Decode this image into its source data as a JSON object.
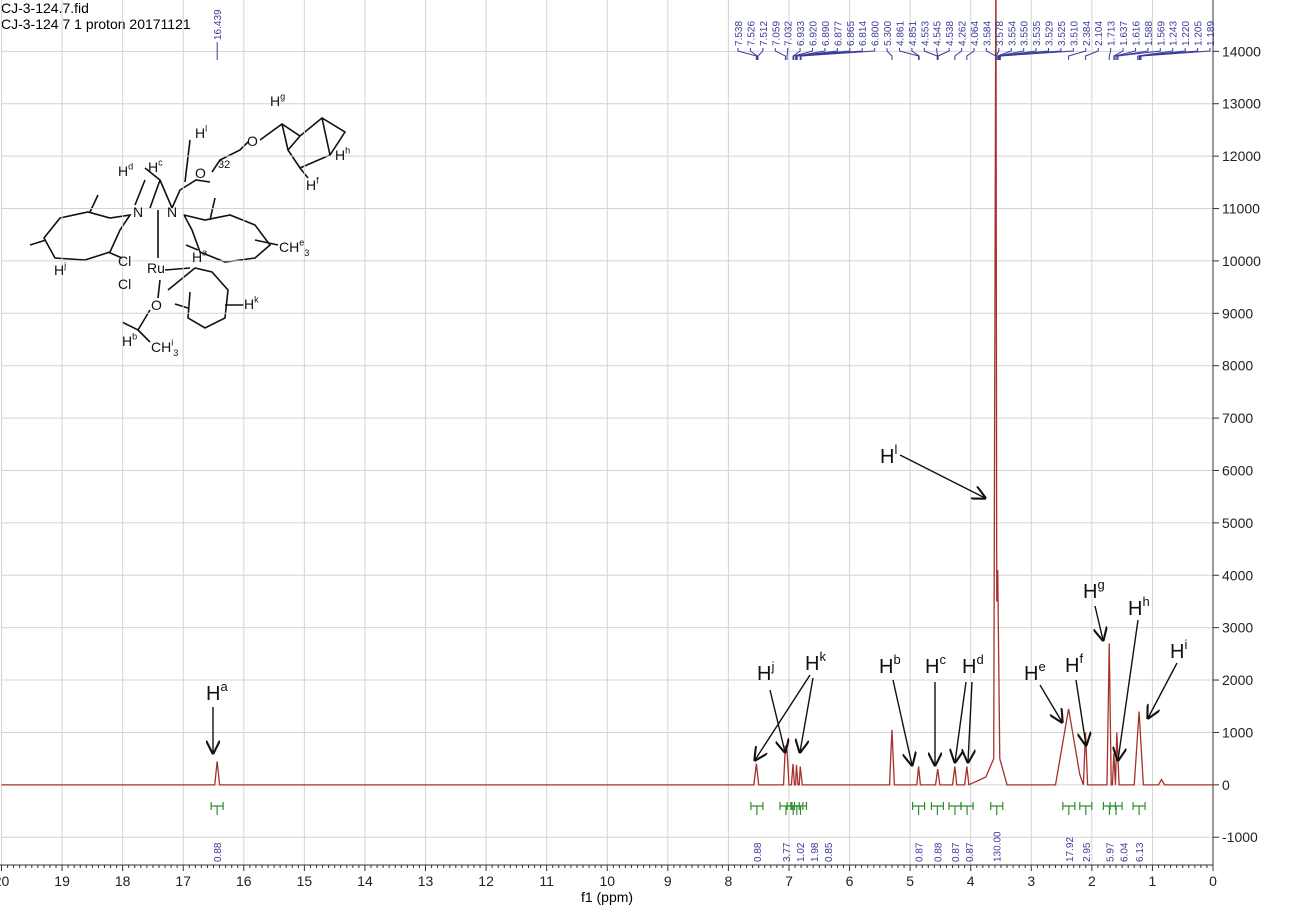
{
  "chart_data": {
    "type": "line",
    "title": "CJ-3-124.7.fid",
    "subtitle": "CJ-3-124 7 1 proton 20171121",
    "x_label": "f1 (ppm)",
    "xlim": [
      20,
      0
    ],
    "xticks": [
      20,
      19,
      18,
      17,
      16,
      15,
      14,
      13,
      12,
      11,
      10,
      9,
      8,
      7,
      6,
      5,
      4,
      3,
      2,
      1,
      0
    ],
    "ylim": [
      -1530,
      14980
    ],
    "yticks": [
      -1000,
      0,
      1000,
      2000,
      3000,
      4000,
      5000,
      6000,
      7000,
      8000,
      9000,
      10000,
      11000,
      12000,
      13000,
      14000
    ],
    "grid": true,
    "x": [
      20,
      16.48,
      16.44,
      16.4,
      7.58,
      7.538,
      7.5,
      7.09,
      7.059,
      7.032,
      7.0,
      6.96,
      6.933,
      6.91,
      6.89,
      6.877,
      6.85,
      6.83,
      6.814,
      6.78,
      5.34,
      5.3,
      5.26,
      4.89,
      4.86,
      4.83,
      4.58,
      4.545,
      4.51,
      4.3,
      4.262,
      4.23,
      4.1,
      4.064,
      4.03,
      3.75,
      3.62,
      3.584,
      3.57,
      3.554,
      3.52,
      3.4,
      2.6,
      2.384,
      2.2,
      2.14,
      2.104,
      2.07,
      1.8,
      1.75,
      1.713,
      1.68,
      1.66,
      1.637,
      1.61,
      1.588,
      1.55,
      1.3,
      1.22,
      1.15,
      0.9,
      0.85,
      0.8,
      0
    ],
    "series": [
      {
        "color": "#a8302c",
        "values": [
          0,
          0,
          450,
          0,
          0,
          400,
          0,
          0,
          750,
          650,
          0,
          0,
          400,
          0,
          0,
          380,
          0,
          0,
          350,
          0,
          0,
          1050,
          0,
          0,
          350,
          0,
          0,
          300,
          0,
          0,
          350,
          0,
          0,
          350,
          0,
          150,
          500,
          16000,
          3500,
          4100,
          500,
          0,
          0,
          1450,
          200,
          0,
          1000,
          0,
          0,
          0,
          2700,
          0,
          0,
          600,
          0,
          1000,
          0,
          0,
          1400,
          0,
          0,
          100,
          0,
          0
        ]
      }
    ],
    "peak_labels_single": [
      "16.439"
    ],
    "peak_labels": [
      "7.538",
      "7.526",
      "7.512",
      "7.059",
      "7.032",
      "6.933",
      "6.920",
      "6.890",
      "6.877",
      "6.865",
      "6.814",
      "6.800",
      "5.300",
      "4.861",
      "4.851",
      "4.553",
      "4.545",
      "4.538",
      "4.262",
      "4.064",
      "3.584",
      "3.578",
      "3.554",
      "3.550",
      "3.535",
      "3.529",
      "3.525",
      "3.510",
      "2.384",
      "2.104",
      "1.713",
      "1.637",
      "1.616",
      "1.588",
      "1.569",
      "1.243",
      "1.220",
      "1.205",
      "1.189"
    ],
    "peak_label_color": "#3b3b9c",
    "integrals": {
      "x": [
        16.44,
        7.53,
        7.05,
        6.93,
        6.87,
        6.81,
        4.86,
        4.55,
        4.26,
        4.06,
        3.57,
        2.38,
        2.1,
        1.71,
        1.6,
        1.22
      ],
      "labels": [
        "0.88",
        "0.88",
        "3.77",
        "1.02",
        "1.98",
        "0.85",
        "0.87",
        "0.88",
        "0.87",
        "0.87",
        "130.00",
        "17.92",
        "2.95",
        "5.97",
        "6.04",
        "6.13"
      ],
      "color": "#2f8f2f"
    },
    "annotations": [
      {
        "text": "H",
        "sup": "a"
      },
      {
        "text": "H",
        "sup": "j"
      },
      {
        "text": "H",
        "sup": "k"
      },
      {
        "text": "H",
        "sup": "b"
      },
      {
        "text": "H",
        "sup": "c"
      },
      {
        "text": "H",
        "sup": "d"
      },
      {
        "text": "H",
        "sup": "l"
      },
      {
        "text": "H",
        "sup": "e"
      },
      {
        "text": "H",
        "sup": "f"
      },
      {
        "text": "H",
        "sup": "g"
      },
      {
        "text": "H",
        "sup": "h"
      },
      {
        "text": "H",
        "sup": "i"
      }
    ]
  },
  "molecule": {
    "atoms": [
      {
        "text": "H",
        "sup": "g"
      },
      {
        "text": "H",
        "sup": "l"
      },
      {
        "text": "O"
      },
      {
        "text": "H",
        "sup": "h"
      },
      {
        "text": "H",
        "sup": "d"
      },
      {
        "text": "H",
        "sup": "c"
      },
      {
        "text": "O"
      },
      {
        "text": "32"
      },
      {
        "text": "H",
        "sup": "f"
      },
      {
        "text": "N"
      },
      {
        "text": "N"
      },
      {
        "text": "CH",
        "sup": "e",
        "sub": "3"
      },
      {
        "text": "H",
        "sup": "j"
      },
      {
        "text": "Cl"
      },
      {
        "text": "Ru"
      },
      {
        "text": "H",
        "sup": "a"
      },
      {
        "text": "Cl"
      },
      {
        "text": "O"
      },
      {
        "text": "H",
        "sup": "k"
      },
      {
        "text": "H",
        "sup": "b"
      },
      {
        "text": "CH",
        "sup": "i",
        "sub": "3"
      }
    ]
  }
}
